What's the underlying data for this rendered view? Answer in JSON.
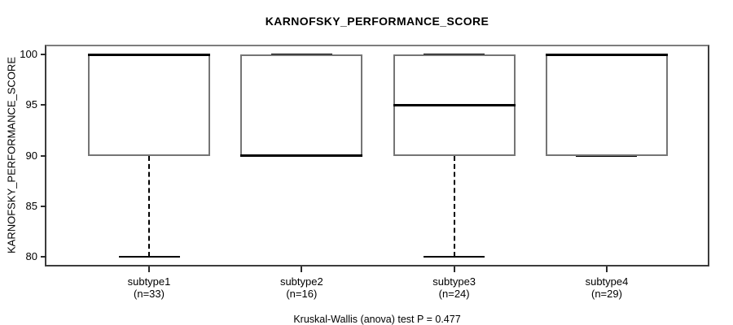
{
  "chart_data": {
    "type": "boxplot",
    "title": "KARNOFSKY_PERFORMANCE_SCORE",
    "ylabel": "KARNOFSKY_PERFORMANCE_SCORE",
    "xlabel": "",
    "ylim": [
      80,
      100
    ],
    "yticks": [
      80,
      85,
      90,
      95,
      100
    ],
    "grid": false,
    "footnote": "Kruskal-Wallis (anova) test P = 0.477",
    "groups": [
      {
        "label": "subtype1",
        "n_label": "(n=33)",
        "n": 33,
        "min": 80,
        "q1": 90,
        "median": 100,
        "q3": 100,
        "max": 100
      },
      {
        "label": "subtype2",
        "n_label": "(n=16)",
        "n": 16,
        "min": 90,
        "q1": 90,
        "median": 90,
        "q3": 100,
        "max": 100
      },
      {
        "label": "subtype3",
        "n_label": "(n=24)",
        "n": 24,
        "min": 80,
        "q1": 90,
        "median": 95,
        "q3": 100,
        "max": 100
      },
      {
        "label": "subtype4",
        "n_label": "(n=29)",
        "n": 29,
        "min": 90,
        "q1": 90,
        "median": 100,
        "q3": 100,
        "max": 100
      }
    ],
    "colors": {
      "box_border": "#757575",
      "median": "#000000",
      "whisker": "#000000",
      "axis": "#2b2b2b",
      "fill": "#ffffff"
    }
  }
}
